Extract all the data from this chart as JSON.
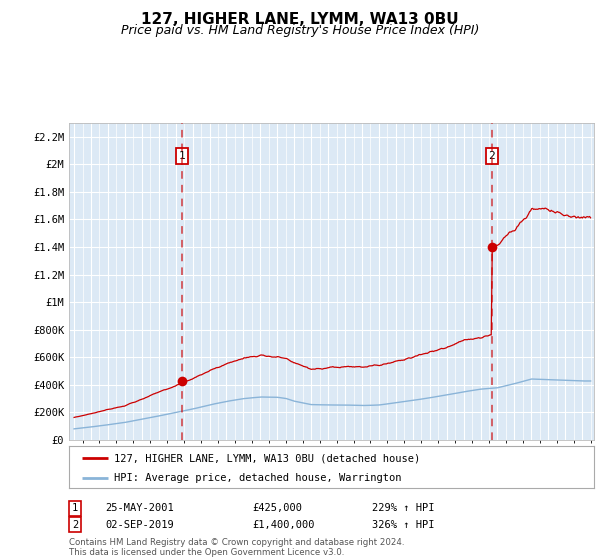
{
  "title": "127, HIGHER LANE, LYMM, WA13 0BU",
  "subtitle": "Price paid vs. HM Land Registry's House Price Index (HPI)",
  "title_fontsize": 11,
  "subtitle_fontsize": 9,
  "plot_bg_color": "#dce9f5",
  "grid_color": "#ffffff",
  "hpi_line_color": "#8ab4d8",
  "price_line_color": "#cc0000",
  "ylim": [
    0,
    2300000
  ],
  "yticks": [
    0,
    200000,
    400000,
    600000,
    800000,
    1000000,
    1200000,
    1400000,
    1600000,
    1800000,
    2000000,
    2200000
  ],
  "ytick_labels": [
    "£0",
    "£200K",
    "£400K",
    "£600K",
    "£800K",
    "£1M",
    "£1.2M",
    "£1.4M",
    "£1.6M",
    "£1.8M",
    "£2M",
    "£2.2M"
  ],
  "sale1_date": 2001.38,
  "sale1_price": 425000,
  "sale1_label": "1",
  "sale2_date": 2019.67,
  "sale2_price": 1400000,
  "sale2_label": "2",
  "legend_price_label": "127, HIGHER LANE, LYMM, WA13 0BU (detached house)",
  "legend_hpi_label": "HPI: Average price, detached house, Warrington",
  "footnote1_label": "1",
  "footnote1_date": "25-MAY-2001",
  "footnote1_price": "£425,000",
  "footnote1_hpi": "229% ↑ HPI",
  "footnote2_label": "2",
  "footnote2_date": "02-SEP-2019",
  "footnote2_price": "£1,400,000",
  "footnote2_hpi": "326% ↑ HPI",
  "copyright_text": "Contains HM Land Registry data © Crown copyright and database right 2024.\nThis data is licensed under the Open Government Licence v3.0."
}
